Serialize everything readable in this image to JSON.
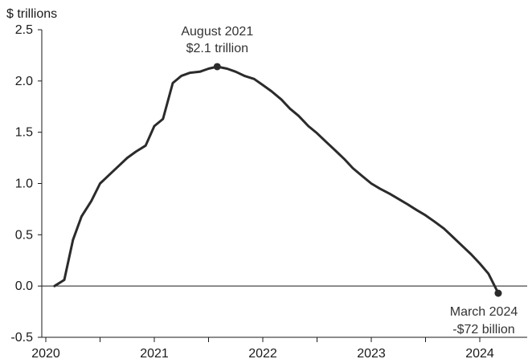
{
  "chart_data": {
    "type": "line",
    "ylabel": "$ trillions",
    "ylim": [
      -0.5,
      2.5
    ],
    "xlim": [
      2020.0,
      2024.42
    ],
    "y_ticks": [
      "2.5",
      "2.0",
      "1.5",
      "1.0",
      "0.5",
      "0.0",
      "-0.5"
    ],
    "x_ticks": [
      "2020",
      "2021",
      "2022",
      "2023",
      "2024"
    ],
    "grid": false,
    "series": [
      {
        "color": "#2b2b2b",
        "x": [
          2020.08,
          2020.17,
          2020.25,
          2020.33,
          2020.42,
          2020.5,
          2020.58,
          2020.67,
          2020.75,
          2020.83,
          2020.92,
          2021.0,
          2021.08,
          2021.17,
          2021.25,
          2021.33,
          2021.42,
          2021.5,
          2021.58,
          2021.67,
          2021.75,
          2021.83,
          2021.92,
          2022.0,
          2022.08,
          2022.17,
          2022.25,
          2022.33,
          2022.42,
          2022.5,
          2022.58,
          2022.67,
          2022.75,
          2022.83,
          2022.92,
          2023.0,
          2023.08,
          2023.17,
          2023.25,
          2023.33,
          2023.42,
          2023.5,
          2023.58,
          2023.67,
          2023.75,
          2023.83,
          2023.92,
          2024.0,
          2024.08,
          2024.17
        ],
        "y": [
          0.0,
          0.06,
          0.45,
          0.68,
          0.83,
          1.0,
          1.08,
          1.17,
          1.25,
          1.31,
          1.37,
          1.56,
          1.63,
          1.98,
          2.05,
          2.08,
          2.09,
          2.12,
          2.14,
          2.12,
          2.09,
          2.05,
          2.02,
          1.96,
          1.9,
          1.82,
          1.73,
          1.66,
          1.56,
          1.49,
          1.41,
          1.32,
          1.24,
          1.15,
          1.07,
          1.0,
          0.95,
          0.9,
          0.85,
          0.8,
          0.74,
          0.69,
          0.63,
          0.56,
          0.48,
          0.4,
          0.31,
          0.22,
          0.12,
          -0.07
        ]
      }
    ],
    "annotations": [
      {
        "lines": [
          "August 2021",
          "$2.1 trillion"
        ],
        "x": 2021.58,
        "y": 2.14
      },
      {
        "lines": [
          "March 2024",
          "-$72 billion"
        ],
        "x": 2024.17,
        "y": -0.07
      }
    ]
  }
}
